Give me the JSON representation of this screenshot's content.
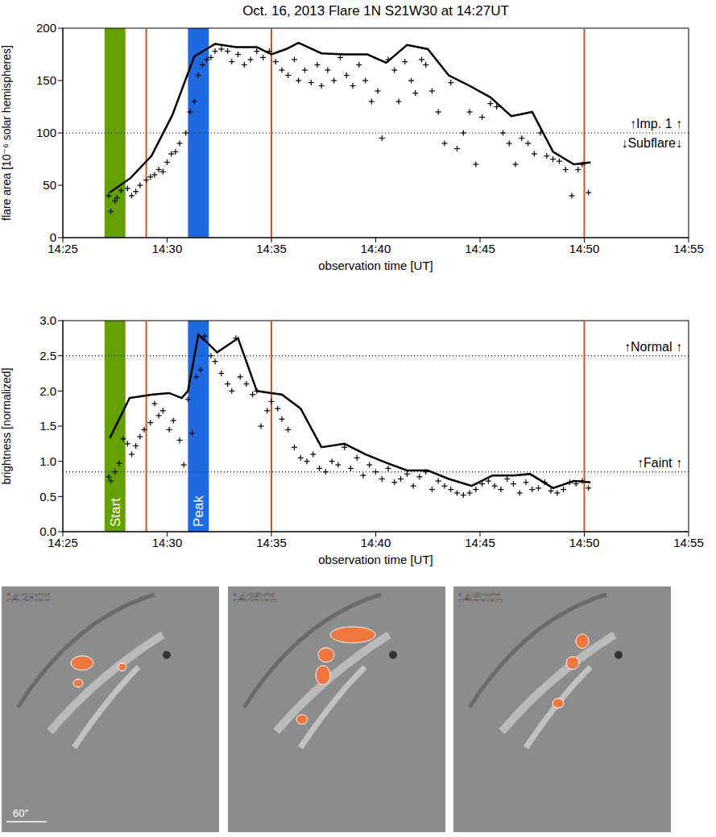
{
  "chart_data": [
    {
      "type": "line",
      "title": "Oct. 16, 2013 Flare 1N S21W30 at 14:27UT",
      "x_label": "observation time [UT]",
      "y_label": "flare area [10⁻⁶ solar hemispheres]",
      "xlim": [
        25,
        55
      ],
      "xticks": [
        {
          "value": 25,
          "label": "14:25"
        },
        {
          "value": 30,
          "label": "14:30"
        },
        {
          "value": 35,
          "label": "14:35"
        },
        {
          "value": 40,
          "label": "14:40"
        },
        {
          "value": 45,
          "label": "14:45"
        },
        {
          "value": 50,
          "label": "14:50"
        },
        {
          "value": 55,
          "label": "14:55"
        }
      ],
      "ylim": [
        0,
        200
      ],
      "yticks": [
        0,
        50,
        100,
        150,
        200
      ],
      "grid": false,
      "bands": [
        {
          "x": [
            27,
            28
          ],
          "color": "#63a000"
        },
        {
          "x": [
            31,
            32
          ],
          "color": "#1f6ae0"
        }
      ],
      "vlines": {
        "x": [
          29,
          35,
          50
        ],
        "color": "#d9501c"
      },
      "thresholds": [
        {
          "y": 100,
          "above": "↑Imp. 1 ↑",
          "below": "↓Subflare↓"
        }
      ],
      "series": [
        {
          "type": "line",
          "color": "#000000",
          "line_style": "solid",
          "x": [
            27.25,
            28.25,
            29.25,
            30.25,
            31.3,
            32.3,
            33.3,
            34.3,
            35.0,
            35.7,
            36.3,
            37.4,
            38.5,
            39.6,
            40.5,
            41.5,
            42.5,
            43.5,
            44.5,
            45.5,
            46.5,
            47.5,
            48.5,
            49.5,
            50.3
          ],
          "values": [
            43,
            57,
            78,
            117,
            173,
            185,
            182,
            182,
            175,
            180,
            186,
            176,
            175,
            175,
            167,
            184,
            180,
            155,
            145,
            134,
            116,
            120,
            82,
            70,
            72
          ]
        },
        {
          "type": "scatter",
          "color": "#000000",
          "marker": "plus",
          "x": [
            27.2,
            27.3,
            27.5,
            27.6,
            27.8,
            28.1,
            28.3,
            28.5,
            28.7,
            29.0,
            29.2,
            29.4,
            29.6,
            29.8,
            30.0,
            30.2,
            30.4,
            30.6,
            30.9,
            31.1,
            31.3,
            31.5,
            31.7,
            31.9,
            32.1,
            32.3,
            32.6,
            32.9,
            33.1,
            33.4,
            33.7,
            34.0,
            34.3,
            34.6,
            34.9,
            35.2,
            35.5,
            35.8,
            36.1,
            36.3,
            36.6,
            36.9,
            37.2,
            37.4,
            37.7,
            38.0,
            38.3,
            38.6,
            38.9,
            39.2,
            39.5,
            39.8,
            40.1,
            40.3,
            40.6,
            40.9,
            41.1,
            41.4,
            41.7,
            41.9,
            42.2,
            42.4,
            42.7,
            43.0,
            43.3,
            43.6,
            43.9,
            44.2,
            44.5,
            44.8,
            45.1,
            45.5,
            45.8,
            46.1,
            46.4,
            46.7,
            47.0,
            47.3,
            47.6,
            47.9,
            48.2,
            48.5,
            48.8,
            49.1,
            49.4,
            49.7,
            49.9,
            50.2
          ],
          "values": [
            40,
            25,
            35,
            38,
            45,
            47,
            40,
            44,
            50,
            55,
            58,
            60,
            65,
            63,
            72,
            80,
            82,
            90,
            100,
            120,
            130,
            155,
            165,
            170,
            172,
            178,
            180,
            178,
            168,
            175,
            165,
            170,
            178,
            172,
            178,
            168,
            160,
            155,
            170,
            150,
            160,
            148,
            165,
            145,
            160,
            150,
            172,
            155,
            145,
            165,
            150,
            130,
            140,
            95,
            170,
            160,
            130,
            168,
            150,
            138,
            170,
            165,
            140,
            120,
            90,
            148,
            85,
            100,
            120,
            70,
            115,
            128,
            125,
            100,
            90,
            70,
            95,
            90,
            80,
            100,
            78,
            75,
            73,
            65,
            40,
            65,
            70,
            43
          ]
        }
      ]
    },
    {
      "type": "line",
      "x_label": "observation time [UT]",
      "y_label": "brightness [normalized]",
      "xlim": [
        25,
        55
      ],
      "xticks": [
        {
          "value": 25,
          "label": "14:25"
        },
        {
          "value": 30,
          "label": "14:30"
        },
        {
          "value": 35,
          "label": "14:35"
        },
        {
          "value": 40,
          "label": "14:40"
        },
        {
          "value": 45,
          "label": "14:45"
        },
        {
          "value": 50,
          "label": "14:50"
        },
        {
          "value": 55,
          "label": "14:55"
        }
      ],
      "ylim": [
        0,
        3
      ],
      "yticks": [
        {
          "value": 0,
          "label": "0.0"
        },
        0.5,
        {
          "value": 1,
          "label": "1.0"
        },
        1.5,
        {
          "value": 2,
          "label": "2.0"
        },
        2.5,
        {
          "value": 3,
          "label": "3.0"
        }
      ],
      "grid": false,
      "bands": [
        {
          "label": "Start",
          "x": [
            27,
            28
          ],
          "color": "#63a000"
        },
        {
          "label": "Peak",
          "x": [
            31,
            32
          ],
          "color": "#1f6ae0"
        }
      ],
      "vlines": {
        "x": [
          29,
          35,
          50
        ],
        "color": "#d9501c"
      },
      "thresholds": [
        {
          "y": 2.5,
          "above": "↑Normal ↑"
        },
        {
          "y": 0.85,
          "above": "↑Faint ↑"
        }
      ],
      "series": [
        {
          "type": "line",
          "color": "#000000",
          "line_style": "solid",
          "x": [
            27.25,
            28.2,
            29.3,
            30.1,
            30.7,
            31.0,
            31.5,
            31.8,
            32.4,
            33.4,
            34.3,
            35.0,
            35.5,
            36.4,
            37.4,
            38.5,
            39.5,
            40.5,
            41.5,
            42.5,
            43.5,
            44.6,
            45.6,
            46.6,
            47.4,
            48.5,
            49.5,
            50.3
          ],
          "values": [
            1.33,
            1.9,
            1.95,
            1.97,
            1.9,
            2.0,
            2.8,
            2.72,
            2.55,
            2.75,
            2.0,
            1.97,
            1.95,
            1.75,
            1.2,
            1.25,
            1.1,
            0.98,
            0.87,
            0.87,
            0.75,
            0.65,
            0.8,
            0.8,
            0.82,
            0.62,
            0.72,
            0.7
          ]
        },
        {
          "type": "scatter",
          "color": "#000000",
          "marker": "plus",
          "x": [
            27.2,
            27.3,
            27.5,
            27.7,
            27.9,
            28.1,
            28.3,
            28.5,
            28.7,
            28.9,
            29.2,
            29.4,
            29.6,
            29.8,
            30.1,
            30.3,
            30.6,
            30.8,
            31.0,
            31.2,
            31.4,
            31.6,
            31.8,
            32.1,
            32.3,
            32.6,
            32.9,
            33.1,
            33.3,
            33.5,
            33.8,
            34.1,
            34.3,
            34.5,
            34.8,
            35.0,
            35.3,
            35.5,
            35.8,
            36.1,
            36.4,
            36.7,
            37.0,
            37.3,
            37.6,
            37.9,
            38.2,
            38.5,
            38.8,
            39.1,
            39.4,
            39.7,
            40.0,
            40.3,
            40.6,
            40.9,
            41.2,
            41.5,
            41.8,
            42.1,
            42.4,
            42.7,
            43.0,
            43.3,
            43.6,
            43.9,
            44.2,
            44.5,
            44.8,
            45.1,
            45.4,
            45.7,
            46.0,
            46.3,
            46.6,
            46.9,
            47.2,
            47.5,
            47.8,
            48.1,
            48.4,
            48.7,
            49.0,
            49.3,
            49.6,
            49.9,
            50.2
          ],
          "values": [
            0.78,
            0.72,
            0.85,
            0.97,
            1.32,
            1.25,
            1.1,
            1.22,
            1.35,
            1.45,
            1.55,
            1.82,
            1.65,
            1.72,
            1.45,
            1.58,
            1.3,
            0.95,
            1.88,
            1.4,
            2.2,
            2.3,
            2.78,
            2.5,
            2.42,
            2.25,
            2.1,
            2.0,
            2.75,
            2.2,
            2.1,
            1.95,
            2.0,
            1.5,
            1.72,
            1.85,
            1.75,
            1.6,
            1.45,
            1.2,
            1.05,
            1.0,
            1.1,
            0.9,
            0.85,
            1.0,
            0.95,
            1.2,
            0.9,
            1.05,
            0.8,
            0.95,
            0.85,
            0.75,
            0.9,
            0.7,
            0.75,
            0.82,
            0.65,
            0.78,
            0.85,
            0.6,
            0.72,
            0.65,
            0.6,
            0.55,
            0.52,
            0.55,
            0.6,
            0.68,
            0.72,
            0.65,
            0.6,
            0.75,
            0.68,
            0.55,
            0.7,
            0.6,
            0.62,
            0.7,
            0.58,
            0.55,
            0.6,
            0.7,
            0.68,
            0.72,
            0.62
          ]
        }
      ]
    }
  ],
  "images": {
    "timestamps": [
      "14:29:06",
      "14:35:01",
      "14:50:01"
    ],
    "scale_label": "60″"
  }
}
